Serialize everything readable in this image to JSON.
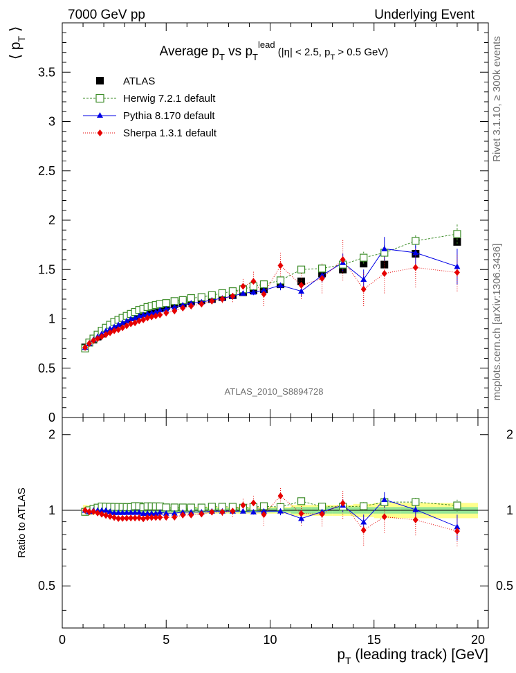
{
  "header": {
    "energy_label": "7000 GeV pp",
    "process_label": "Underlying Event"
  },
  "side_labels": {
    "rivet": "Rivet 3.1.10, ≥ 300k events",
    "mcplots": "mcplots.cern.ch [arXiv:1306.3436]"
  },
  "chart_data": {
    "type": "scatter",
    "title": {
      "main": "Average p",
      "sub1": "T",
      "vs": " vs p",
      "sub2": "T",
      "sup": "lead",
      "cuts_a": " (|η| < 2.5, p",
      "sub3": "T",
      "cuts_b": " > 0.5 GeV)"
    },
    "analysis_id": "ATLAS_2010_S8894728",
    "ylabel_main": "⟨ p",
    "ylabel_main_sub": "T",
    "ylabel_main_end": " ⟩",
    "ylabel_ratio": "Ratio to ATLAS",
    "xlabel": "p",
    "xlabel_sub": "T",
    "xlabel_end": " (leading track) [GeV]",
    "xlim": [
      0,
      20.5
    ],
    "ylim_main": [
      0,
      4.0
    ],
    "ylim_ratio": [
      0.34,
      2.34
    ],
    "x_ticks": [
      "0",
      "5",
      "10",
      "15",
      "20"
    ],
    "y_ticks_main": [
      "0",
      "0.5",
      "1",
      "1.5",
      "2",
      "2.5",
      "3",
      "3.5"
    ],
    "y_ticks_ratio": [
      "0.5",
      "1",
      "2"
    ],
    "x": [
      1.1,
      1.3,
      1.5,
      1.7,
      1.9,
      2.1,
      2.3,
      2.5,
      2.7,
      2.9,
      3.1,
      3.3,
      3.5,
      3.7,
      3.9,
      4.1,
      4.3,
      4.5,
      4.7,
      5.0,
      5.4,
      5.8,
      6.2,
      6.7,
      7.2,
      7.7,
      8.2,
      8.7,
      9.2,
      9.7,
      10.5,
      11.5,
      12.5,
      13.5,
      14.5,
      15.5,
      17.0,
      19.0
    ],
    "legend": [
      {
        "name": "ATLAS",
        "color": "#000000"
      },
      {
        "name": "Herwig 7.2.1 default",
        "color": "#3c8c28"
      },
      {
        "name": "Pythia 8.170 default",
        "color": "#0000e6"
      },
      {
        "name": "Sherpa 1.3.1 default",
        "color": "#e60000"
      }
    ],
    "series": [
      {
        "name": "ATLAS",
        "values": [
          0.71,
          0.76,
          0.79,
          0.82,
          0.85,
          0.88,
          0.91,
          0.94,
          0.96,
          0.98,
          1.0,
          1.02,
          1.03,
          1.05,
          1.07,
          1.08,
          1.09,
          1.1,
          1.11,
          1.13,
          1.15,
          1.16,
          1.18,
          1.19,
          1.2,
          1.22,
          1.24,
          1.27,
          1.29,
          1.3,
          1.35,
          1.38,
          1.46,
          1.5,
          1.56,
          1.55,
          1.66,
          1.78
        ]
      },
      {
        "name": "Herwig 7.2.1 default",
        "values": [
          0.7,
          0.76,
          0.8,
          0.84,
          0.88,
          0.91,
          0.94,
          0.97,
          0.99,
          1.01,
          1.03,
          1.05,
          1.07,
          1.09,
          1.1,
          1.12,
          1.13,
          1.14,
          1.15,
          1.16,
          1.18,
          1.19,
          1.21,
          1.22,
          1.24,
          1.26,
          1.28,
          1.3,
          1.33,
          1.35,
          1.39,
          1.5,
          1.51,
          1.55,
          1.62,
          1.67,
          1.79,
          1.86
        ]
      },
      {
        "name": "Pythia 8.170 default",
        "values": [
          0.71,
          0.75,
          0.79,
          0.82,
          0.85,
          0.88,
          0.9,
          0.92,
          0.94,
          0.96,
          0.98,
          1.0,
          1.01,
          1.03,
          1.04,
          1.05,
          1.06,
          1.07,
          1.09,
          1.1,
          1.12,
          1.14,
          1.16,
          1.17,
          1.19,
          1.21,
          1.23,
          1.26,
          1.27,
          1.29,
          1.34,
          1.28,
          1.44,
          1.57,
          1.4,
          1.71,
          1.67,
          1.53
        ]
      },
      {
        "name": "Sherpa 1.3.1 default",
        "values": [
          0.71,
          0.75,
          0.78,
          0.8,
          0.82,
          0.84,
          0.86,
          0.88,
          0.89,
          0.91,
          0.93,
          0.95,
          0.96,
          0.98,
          0.99,
          1.01,
          1.02,
          1.03,
          1.04,
          1.06,
          1.08,
          1.11,
          1.13,
          1.15,
          1.18,
          1.2,
          1.23,
          1.33,
          1.38,
          1.25,
          1.54,
          1.34,
          1.41,
          1.6,
          1.3,
          1.46,
          1.52,
          1.47
        ]
      }
    ],
    "herwig_err": [
      0.005,
      0.005,
      0.005,
      0.005,
      0.005,
      0.005,
      0.005,
      0.005,
      0.005,
      0.005,
      0.005,
      0.005,
      0.005,
      0.005,
      0.005,
      0.005,
      0.005,
      0.005,
      0.005,
      0.005,
      0.01,
      0.01,
      0.01,
      0.01,
      0.01,
      0.01,
      0.01,
      0.01,
      0.02,
      0.02,
      0.03,
      0.03,
      0.05,
      0.05,
      0.06,
      0.08,
      0.07,
      0.1
    ],
    "pythia_err": [
      0.005,
      0.005,
      0.005,
      0.005,
      0.005,
      0.005,
      0.005,
      0.005,
      0.005,
      0.005,
      0.005,
      0.005,
      0.005,
      0.005,
      0.005,
      0.005,
      0.005,
      0.005,
      0.005,
      0.005,
      0.01,
      0.01,
      0.01,
      0.01,
      0.01,
      0.01,
      0.02,
      0.02,
      0.03,
      0.04,
      0.05,
      0.05,
      0.07,
      0.09,
      0.1,
      0.12,
      0.15,
      0.18
    ],
    "sherpa_err": [
      0.005,
      0.005,
      0.005,
      0.005,
      0.005,
      0.005,
      0.005,
      0.005,
      0.005,
      0.005,
      0.005,
      0.005,
      0.005,
      0.005,
      0.005,
      0.005,
      0.005,
      0.005,
      0.005,
      0.01,
      0.01,
      0.01,
      0.02,
      0.02,
      0.03,
      0.04,
      0.06,
      0.08,
      0.1,
      0.12,
      0.13,
      0.14,
      0.15,
      0.21,
      0.17,
      0.2,
      0.2,
      0.19
    ],
    "data_rel_err_inner": [
      0.02,
      0.02,
      0.02,
      0.02,
      0.02,
      0.02,
      0.02,
      0.02,
      0.02,
      0.02,
      0.02,
      0.02,
      0.02,
      0.02,
      0.02,
      0.02,
      0.02,
      0.02,
      0.02,
      0.02,
      0.02,
      0.02,
      0.02,
      0.02,
      0.02,
      0.02,
      0.02,
      0.02,
      0.02,
      0.02,
      0.02,
      0.03,
      0.03,
      0.03,
      0.03,
      0.03,
      0.03,
      0.03
    ],
    "data_rel_err_outer": [
      0.05,
      0.045,
      0.04,
      0.035,
      0.03,
      0.03,
      0.03,
      0.03,
      0.03,
      0.03,
      0.03,
      0.03,
      0.03,
      0.03,
      0.03,
      0.03,
      0.03,
      0.03,
      0.03,
      0.03,
      0.03,
      0.03,
      0.03,
      0.03,
      0.03,
      0.03,
      0.03,
      0.03,
      0.03,
      0.03,
      0.03,
      0.05,
      0.05,
      0.05,
      0.06,
      0.07,
      0.07,
      0.07
    ]
  }
}
